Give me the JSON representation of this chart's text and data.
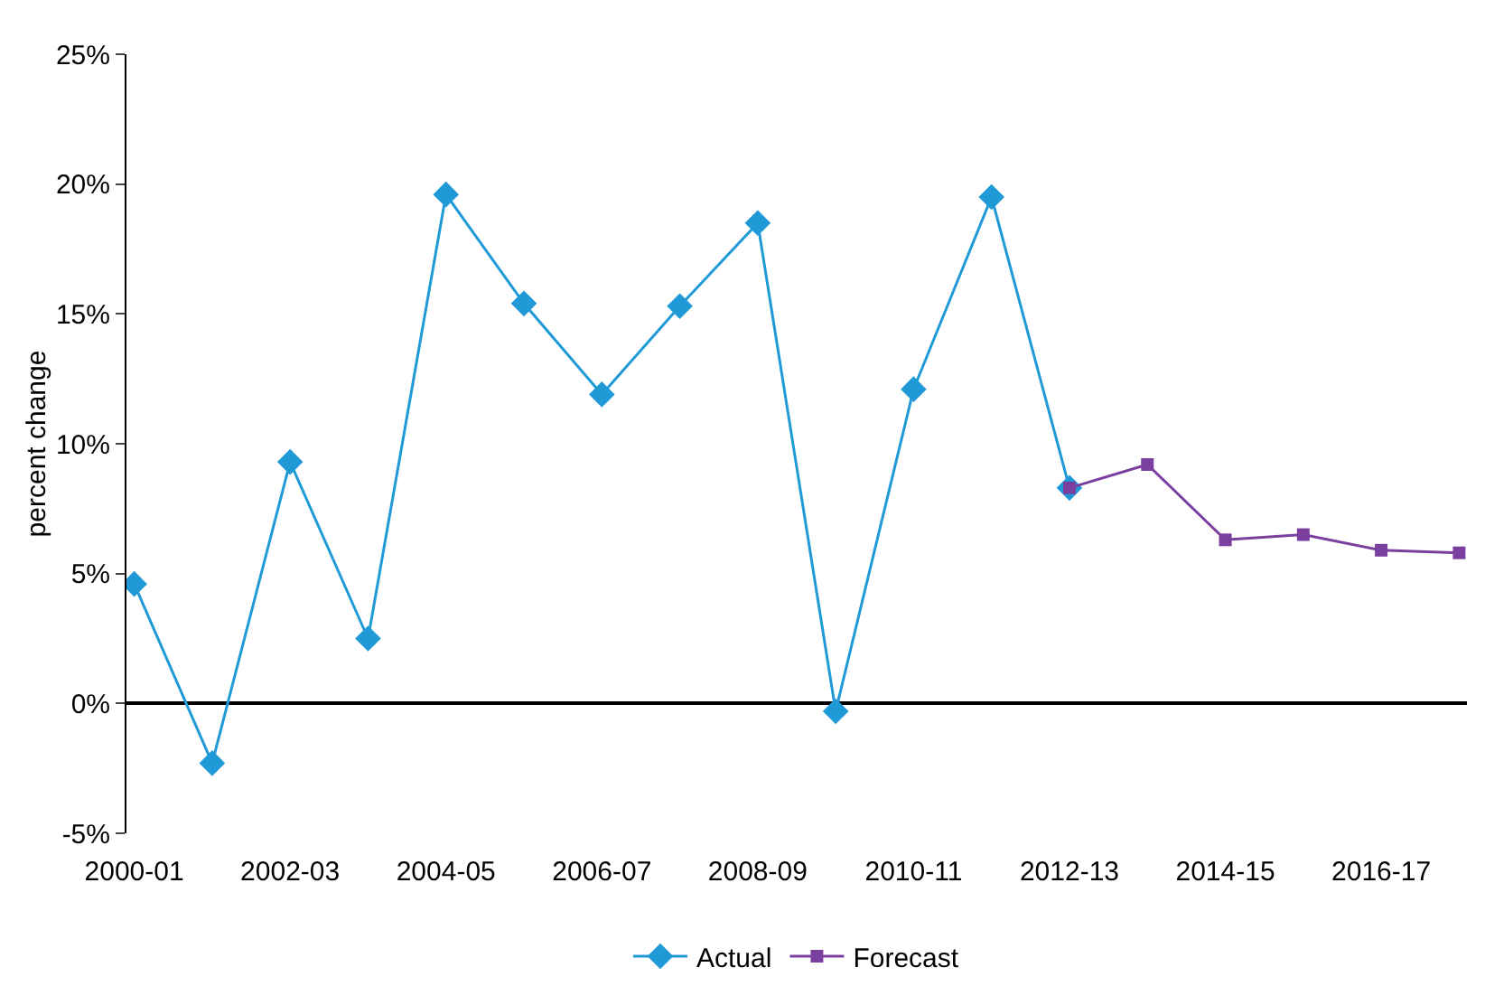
{
  "chart_data": {
    "type": "line",
    "ylabel": "percent change",
    "categories": [
      "2000-01",
      null,
      "2002-03",
      null,
      "2004-05",
      null,
      "2006-07",
      null,
      "2008-09",
      null,
      "2010-11",
      null,
      "2012-13",
      null,
      "2014-15",
      null,
      "2016-17",
      null
    ],
    "series": [
      {
        "name": "Actual",
        "color": "#1f9ad6",
        "marker": "diamond",
        "values": [
          4.6,
          -2.3,
          9.3,
          2.5,
          19.6,
          15.4,
          11.9,
          15.3,
          18.5,
          -0.3,
          12.1,
          19.5,
          8.3,
          null,
          null,
          null,
          null,
          null
        ]
      },
      {
        "name": "Forecast",
        "color": "#7b3fa0",
        "marker": "square",
        "values": [
          null,
          null,
          null,
          null,
          null,
          null,
          null,
          null,
          null,
          null,
          null,
          null,
          8.3,
          9.2,
          6.3,
          6.5,
          5.9,
          5.8
        ]
      }
    ],
    "ylim": [
      -5,
      25
    ],
    "yticks": [
      {
        "value": -5,
        "label": "-5%"
      },
      {
        "value": 0,
        "label": "0%"
      },
      {
        "value": 5,
        "label": "5%"
      },
      {
        "value": 10,
        "label": "10%"
      },
      {
        "value": 15,
        "label": "15%"
      },
      {
        "value": 20,
        "label": "20%"
      },
      {
        "value": 25,
        "label": "25%"
      }
    ],
    "legend": "bottom"
  }
}
